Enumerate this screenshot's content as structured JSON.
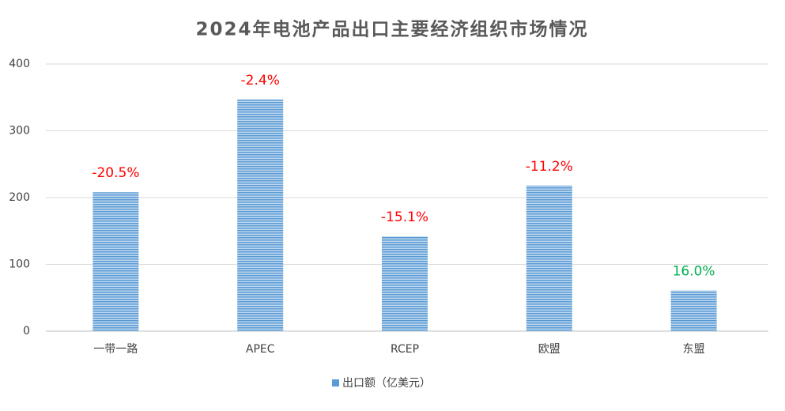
{
  "chart_data": {
    "type": "bar",
    "title": "2024年电池产品出口主要经济组织市场情况",
    "categories": [
      "一带一路",
      "APEC",
      "RCEP",
      "欧盟",
      "东盟"
    ],
    "series": [
      {
        "name": "出口额（亿美元）",
        "color": "#5b9bd5",
        "values": [
          208,
          347,
          142,
          218,
          61
        ]
      }
    ],
    "growth": {
      "values": [
        -20.5,
        -2.4,
        -15.1,
        -11.2,
        16.0
      ],
      "value_labels": [
        "-20.5%",
        "-2.4%",
        "-15.1%",
        "-11.2%",
        "16.0%"
      ],
      "negative_color": "#ff0000",
      "positive_color": "#00b050"
    },
    "ylim": [
      0,
      400
    ],
    "yticks": [
      0,
      100,
      200,
      300,
      400
    ],
    "grid": true,
    "legend": "bottom"
  }
}
